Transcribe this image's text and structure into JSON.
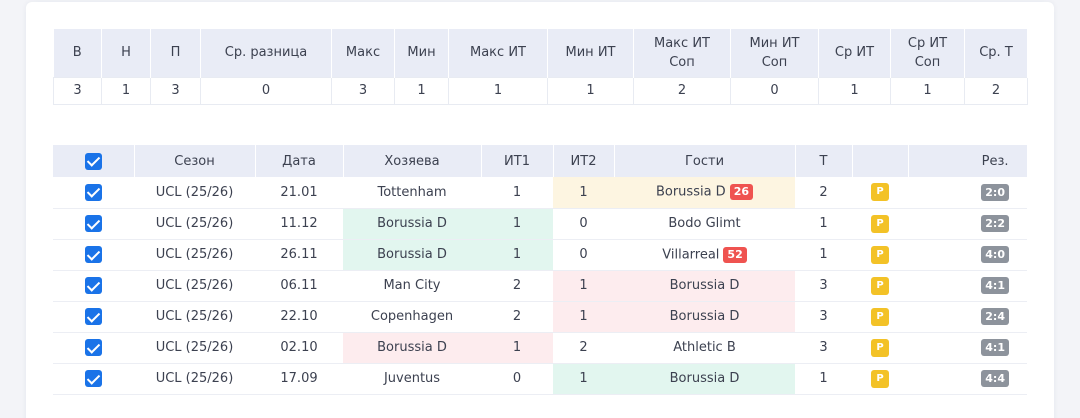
{
  "summary": {
    "headers": [
      "В",
      "Н",
      "П",
      "Ср. разница",
      "Макс",
      "Мин",
      "Макс ИТ",
      "Мин ИТ",
      "Макс ИТ Соп",
      "Мин ИТ Соп",
      "Ср ИТ",
      "Ср ИТ Соп",
      "Ср. Т"
    ],
    "values": [
      "3",
      "1",
      "3",
      "0",
      "3",
      "1",
      "1",
      "1",
      "2",
      "0",
      "1",
      "1",
      "2"
    ]
  },
  "matches": {
    "headers": {
      "season": "Сезон",
      "date": "Дата",
      "home": "Хозяева",
      "it1": "ИТ1",
      "it2": "ИТ2",
      "away": "Гости",
      "t": "Т",
      "extra": "",
      "result": "Рез."
    },
    "rows": [
      {
        "season": "UCL (25/26)",
        "date": "21.01",
        "home": "Tottenham",
        "it1": "1",
        "it2": "1",
        "away": "Borussia D",
        "away_badge": "26",
        "t": "2",
        "p": "P",
        "score": "2:0"
      },
      {
        "season": "UCL (25/26)",
        "date": "11.12",
        "home": "Borussia D",
        "it1": "1",
        "it2": "0",
        "away": "Bodo Glimt",
        "away_badge": "",
        "t": "1",
        "p": "P",
        "score": "2:2"
      },
      {
        "season": "UCL (25/26)",
        "date": "26.11",
        "home": "Borussia D",
        "it1": "1",
        "it2": "0",
        "away": "Villarreal",
        "away_badge": "52",
        "t": "1",
        "p": "P",
        "score": "4:0"
      },
      {
        "season": "UCL (25/26)",
        "date": "06.11",
        "home": "Man City",
        "it1": "2",
        "it2": "1",
        "away": "Borussia D",
        "away_badge": "",
        "t": "3",
        "p": "P",
        "score": "4:1"
      },
      {
        "season": "UCL (25/26)",
        "date": "22.10",
        "home": "Copenhagen",
        "it1": "2",
        "it2": "1",
        "away": "Borussia D",
        "away_badge": "",
        "t": "3",
        "p": "P",
        "score": "2:4"
      },
      {
        "season": "UCL (25/26)",
        "date": "02.10",
        "home": "Borussia D",
        "it1": "1",
        "it2": "2",
        "away": "Athletic B",
        "away_badge": "",
        "t": "3",
        "p": "P",
        "score": "4:1"
      },
      {
        "season": "UCL (25/26)",
        "date": "17.09",
        "home": "Juventus",
        "it1": "0",
        "it2": "1",
        "away": "Borussia D",
        "away_badge": "",
        "t": "1",
        "p": "P",
        "score": "4:4"
      }
    ]
  },
  "colors": {
    "header_bg": "#e9ecf6",
    "checkbox": "#1a73e8",
    "highlight_green": "#e2f6ef",
    "highlight_red": "#fdecee",
    "highlight_yellow": "#fdf5e1",
    "odds_badge": "#ef5350",
    "p_badge": "#f3c227",
    "score_badge": "#8d939c"
  }
}
